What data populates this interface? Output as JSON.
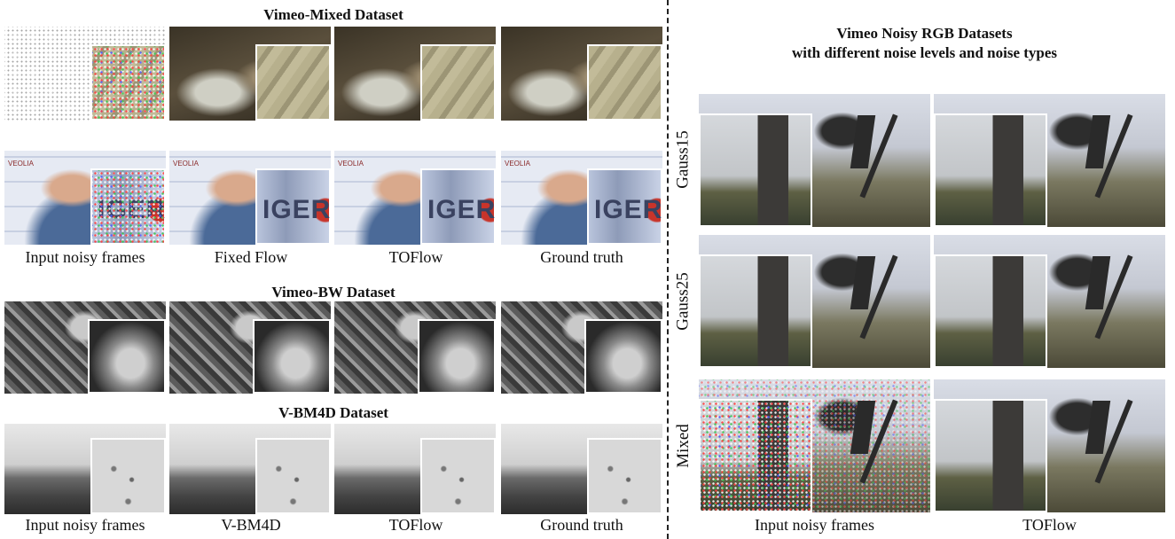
{
  "left": {
    "mixed_title": "Vimeo-Mixed Dataset",
    "mixed_captions": [
      "Input noisy frames",
      "Fixed Flow",
      "TOFlow",
      "Ground truth"
    ],
    "bw_title": "Vimeo-BW Dataset",
    "bm4d_title": "V-BM4D Dataset",
    "bm4d_captions": [
      "Input noisy frames",
      "V-BM4D",
      "TOFlow",
      "Ground truth"
    ],
    "inset_text": "IGER",
    "logo_text": "VEOLIA"
  },
  "right": {
    "title_line1": "Vimeo Noisy RGB Datasets",
    "title_line2": "with different noise levels and noise types",
    "row_labels": [
      "Gauss15",
      "Gauss25",
      "Mixed"
    ],
    "captions": [
      "Input noisy frames",
      "TOFlow"
    ]
  }
}
